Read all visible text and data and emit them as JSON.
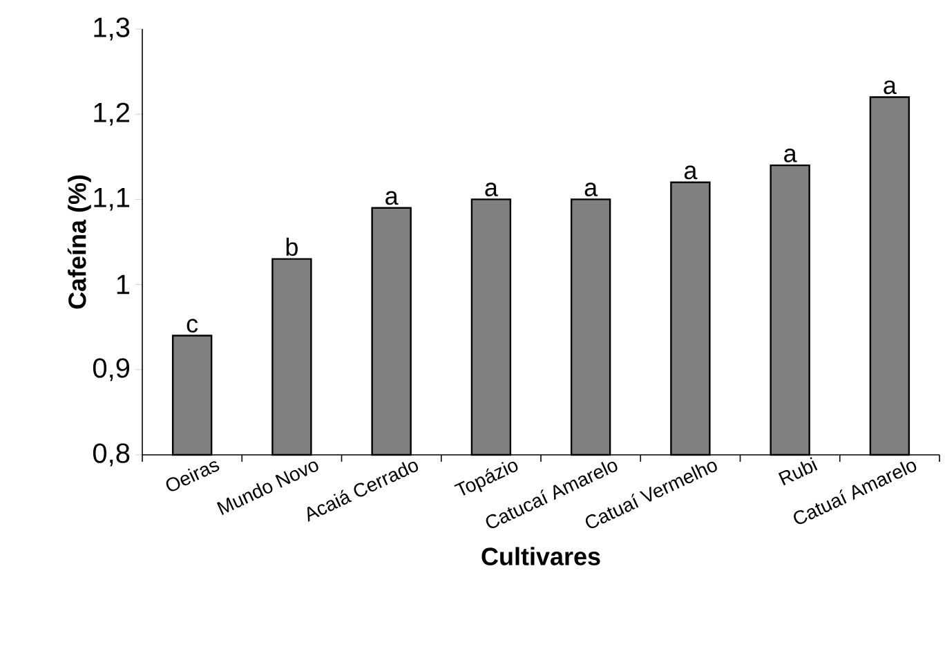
{
  "chart_data": {
    "type": "bar",
    "xlabel": "Cultivares",
    "ylabel": "Cafeína (%)",
    "categories": [
      "Oeiras",
      "Mundo Novo",
      "Acaiá Cerrado",
      "Topázio",
      "Catucaí Amarelo",
      "Catuaí Vermelho",
      "Rubi",
      "Catuaí Amarelo"
    ],
    "values": [
      0.94,
      1.03,
      1.09,
      1.1,
      1.1,
      1.12,
      1.14,
      1.22
    ],
    "color": "#808080",
    "ylim": [
      0.8,
      1.3
    ],
    "yticks": [
      {
        "value": 0.8,
        "label": "0,8"
      },
      {
        "value": 0.9,
        "label": "0,9"
      },
      {
        "value": 1,
        "label": "1"
      },
      {
        "value": 1.1,
        "label": "1,1"
      },
      {
        "value": 1.2,
        "label": "1,2"
      },
      {
        "value": 1.3,
        "label": "1,3"
      }
    ],
    "annotations": [
      {
        "text": "c",
        "x": "Oeiras",
        "y": 0.94
      },
      {
        "text": "b",
        "x": "Mundo Novo",
        "y": 1.03
      },
      {
        "text": "a",
        "x": "Acaiá Cerrado",
        "y": 1.09
      },
      {
        "text": "a",
        "x": "Topázio",
        "y": 1.1
      },
      {
        "text": "a",
        "x": "Catucaí Amarelo",
        "y": 1.1
      },
      {
        "text": "a",
        "x": "Catuaí Vermelho",
        "y": 1.12
      },
      {
        "text": "a",
        "x": "Rubi",
        "y": 1.14
      },
      {
        "text": "a",
        "x": "Catuaí Amarelo",
        "y": 1.22
      }
    ],
    "grid": false
  }
}
